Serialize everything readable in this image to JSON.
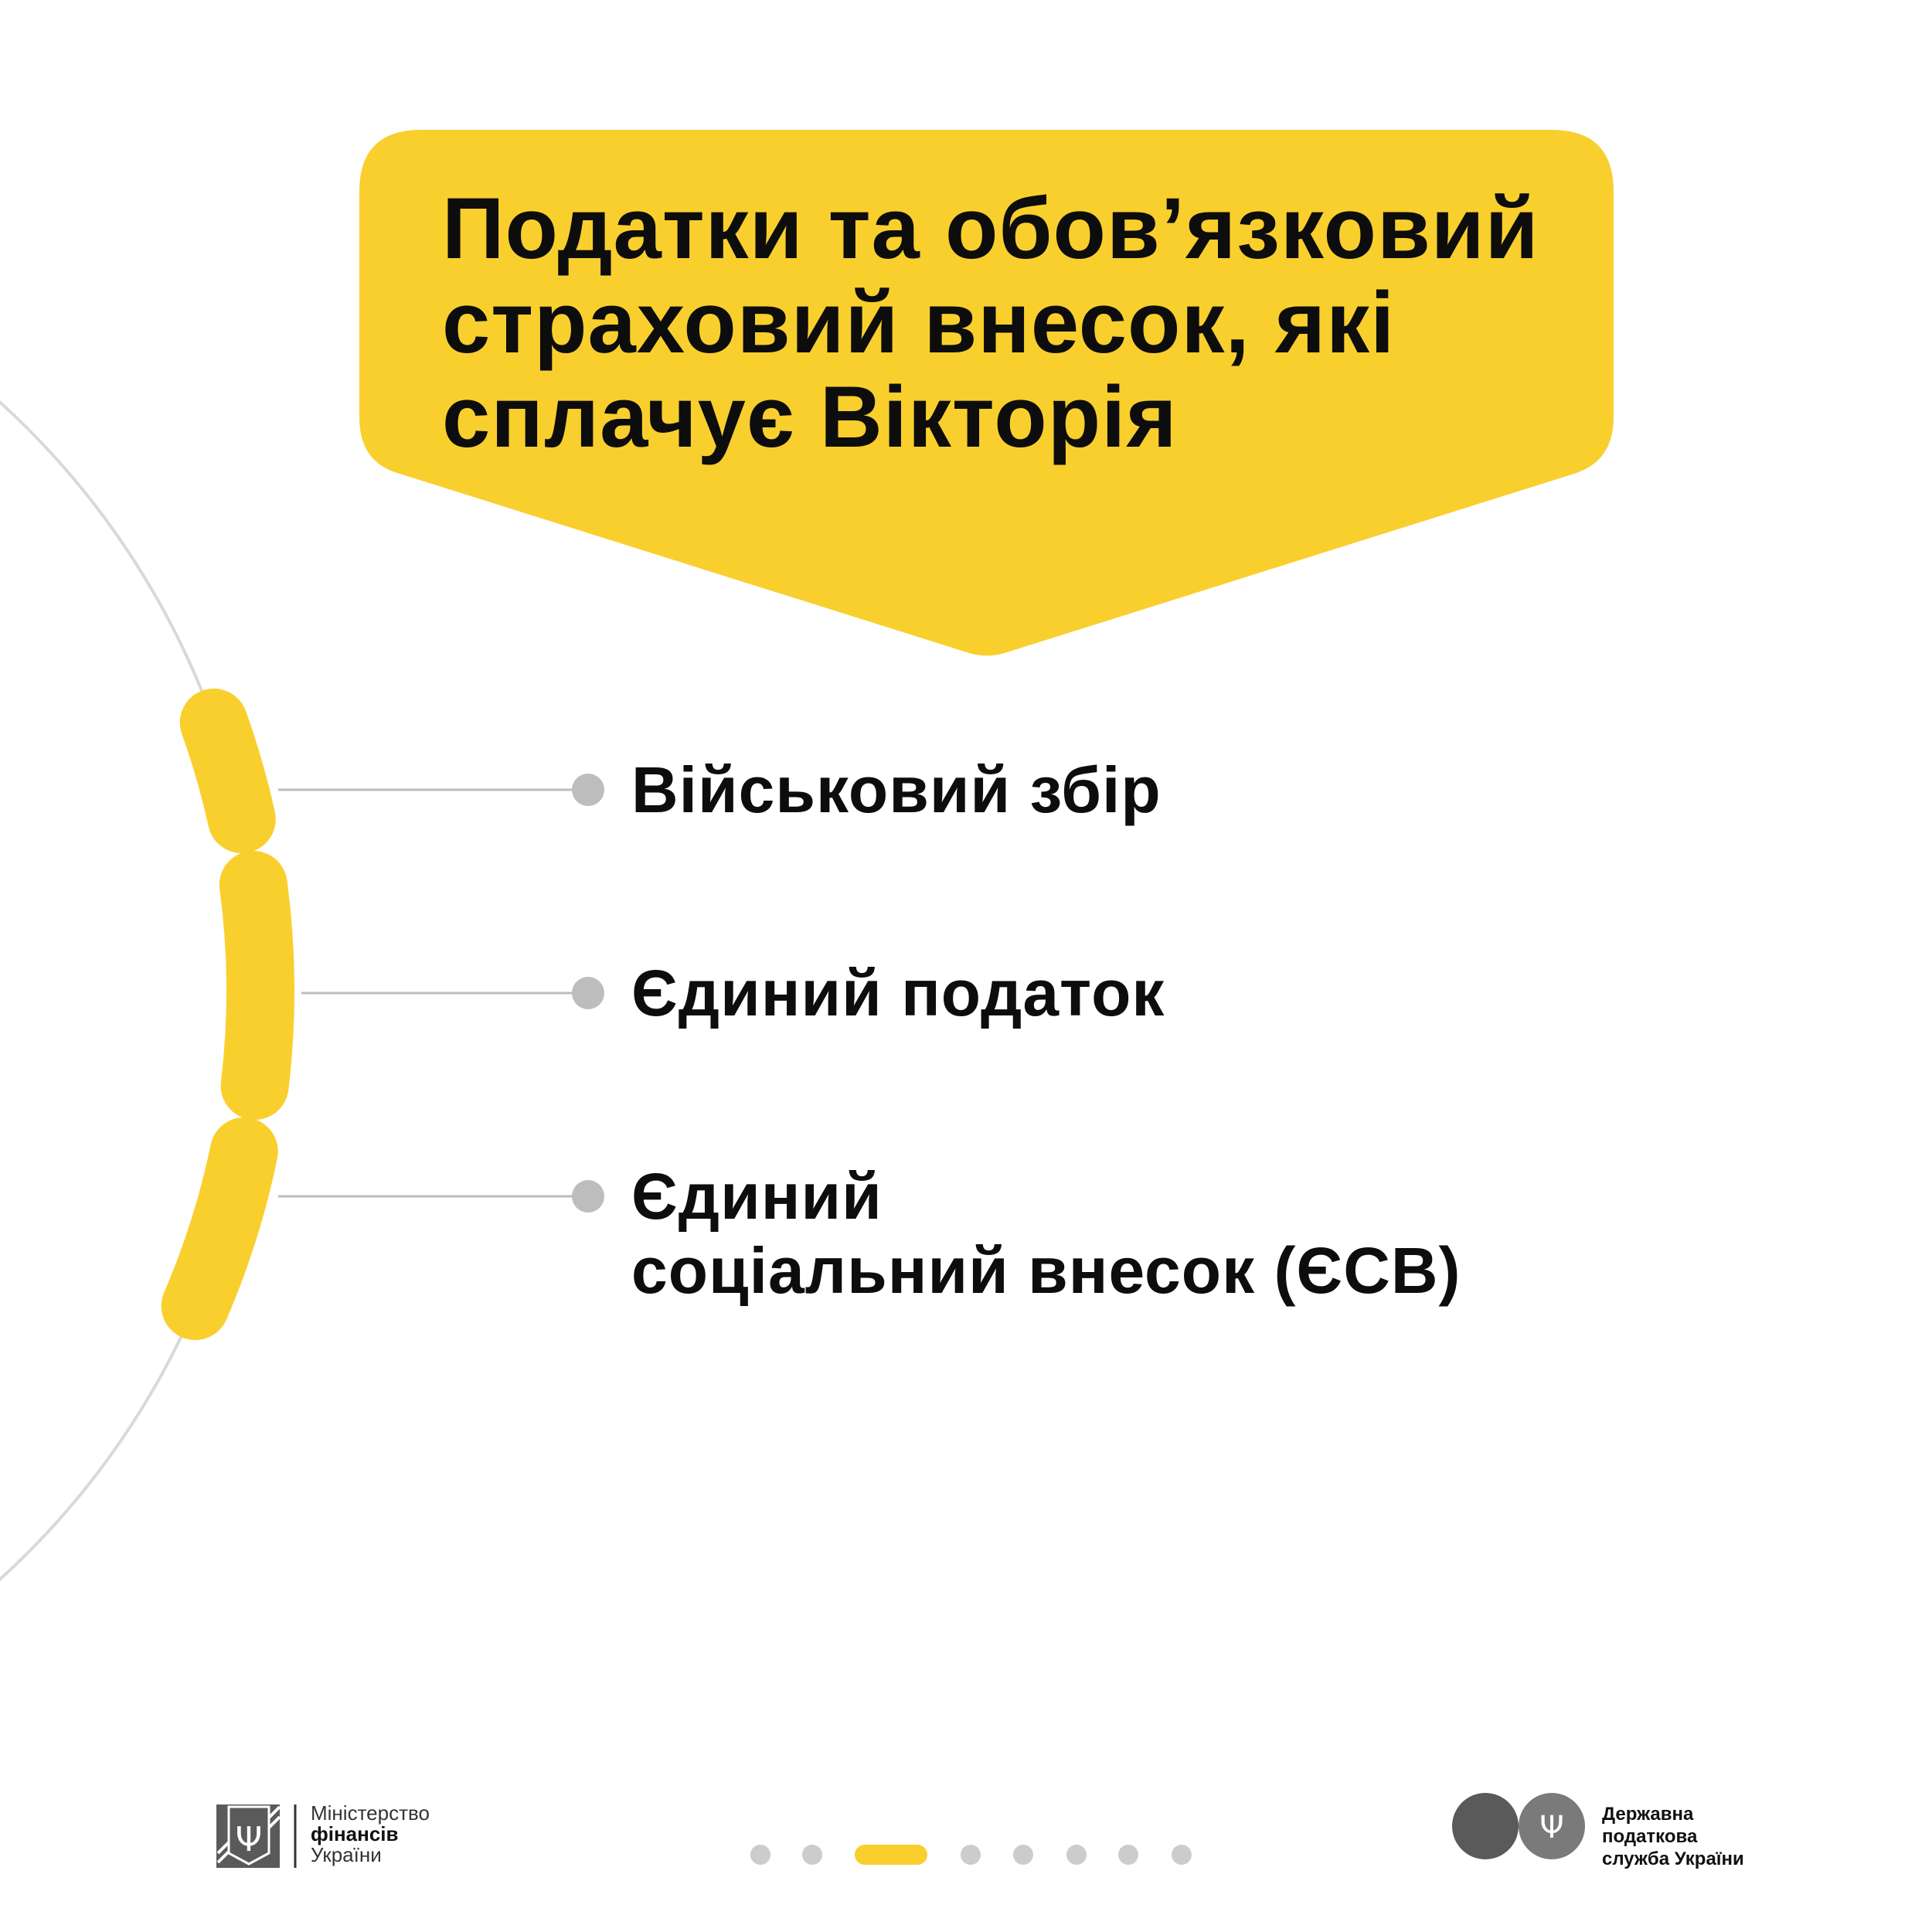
{
  "colors": {
    "accent": "#F9CF2E",
    "line": "#D9D9D9",
    "dot": "#BDBDBD",
    "logo_gray": "#5A5A5A"
  },
  "header": {
    "title_lines": [
      "Податки та обов’язковий",
      "страховий внесок, які",
      "сплачує Вікторія"
    ]
  },
  "items": [
    {
      "lines": [
        "Військовий збір"
      ]
    },
    {
      "lines": [
        "Єдиний податок"
      ]
    },
    {
      "lines": [
        "Єдиний",
        "соціальний внесок (ЄСВ)"
      ]
    }
  ],
  "pagination": {
    "total": 8,
    "active_index": 2
  },
  "footer": {
    "minfin": {
      "line1": "Міністерство",
      "line2": "фінансів",
      "line3": "України",
      "icon": "trident-icon"
    },
    "dps": {
      "line1": "Державна",
      "line2": "податкова",
      "line3": "служба України",
      "icon": "trident-icon"
    }
  }
}
